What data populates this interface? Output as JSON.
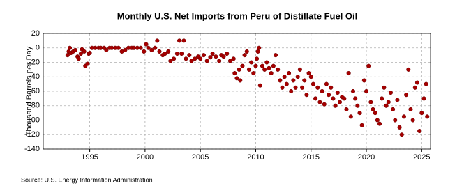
{
  "chart_data": {
    "type": "scatter",
    "title": "Monthly U.S. Net Imports from Peru of Distillate Fuel Oil",
    "y_label": "Thousand Barrels per Day",
    "source": "Source: U.S. Energy Information Administration",
    "color": "#a50000",
    "grid": true,
    "xlim": [
      1990.8,
      2025.8
    ],
    "xticks": [
      1995,
      2000,
      2005,
      2010,
      2015,
      2020,
      2025
    ],
    "ylim": [
      -140,
      20
    ],
    "yticks": [
      -140,
      -120,
      -100,
      -80,
      -60,
      -40,
      -20,
      0,
      20
    ],
    "x": [
      1993.0,
      1993.1,
      1993.2,
      1993.3,
      1993.5,
      1993.7,
      1993.9,
      1994.0,
      1994.2,
      1994.3,
      1994.5,
      1994.6,
      1994.8,
      1994.9,
      1995.0,
      1995.2,
      1995.5,
      1995.8,
      1996.0,
      1996.3,
      1996.5,
      1996.8,
      1997.0,
      1997.3,
      1997.6,
      1997.9,
      1998.2,
      1998.5,
      1998.8,
      1999.0,
      1999.3,
      1999.6,
      1999.9,
      2000.1,
      2000.3,
      2000.6,
      2000.9,
      2001.1,
      2001.3,
      2001.6,
      2001.8,
      2002.1,
      2002.3,
      2002.6,
      2002.9,
      2003.1,
      2003.3,
      2003.5,
      2003.7,
      2004.0,
      2004.2,
      2004.5,
      2004.8,
      2005.0,
      2005.3,
      2005.6,
      2005.9,
      2006.1,
      2006.4,
      2006.7,
      2006.9,
      2007.1,
      2007.4,
      2007.7,
      2008.0,
      2008.1,
      2008.3,
      2008.5,
      2008.6,
      2008.8,
      2009.0,
      2009.2,
      2009.4,
      2009.6,
      2009.8,
      2010.0,
      2010.1,
      2010.2,
      2010.3,
      2010.4,
      2010.6,
      2010.8,
      2011.0,
      2011.2,
      2011.4,
      2011.6,
      2011.8,
      2012.0,
      2012.2,
      2012.4,
      2012.6,
      2012.8,
      2013.0,
      2013.2,
      2013.4,
      2013.6,
      2013.8,
      2014.0,
      2014.2,
      2014.4,
      2014.6,
      2014.8,
      2015.0,
      2015.2,
      2015.4,
      2015.6,
      2015.8,
      2016.0,
      2016.2,
      2016.4,
      2016.6,
      2016.8,
      2017.0,
      2017.2,
      2017.4,
      2017.6,
      2017.8,
      2018.0,
      2018.2,
      2018.4,
      2018.6,
      2018.8,
      2019.0,
      2019.2,
      2019.4,
      2019.6,
      2019.8,
      2020.0,
      2020.2,
      2020.4,
      2020.6,
      2020.8,
      2021.0,
      2021.2,
      2021.4,
      2021.6,
      2021.8,
      2022.0,
      2022.2,
      2022.4,
      2022.6,
      2022.8,
      2023.0,
      2023.2,
      2023.4,
      2023.6,
      2023.8,
      2024.0,
      2024.2,
      2024.4,
      2024.6,
      2024.8,
      2025.0,
      2025.2,
      2025.4,
      2025.5
    ],
    "values": [
      -10,
      -5,
      0,
      -7,
      -5,
      -3,
      -12,
      -15,
      -8,
      -2,
      -5,
      -25,
      -22,
      -8,
      -7,
      0,
      0,
      0,
      0,
      0,
      -3,
      0,
      0,
      0,
      0,
      -5,
      -3,
      0,
      0,
      0,
      0,
      0,
      -5,
      5,
      0,
      -3,
      0,
      10,
      -5,
      -10,
      -8,
      -5,
      -18,
      -15,
      -8,
      10,
      -8,
      10,
      -15,
      -10,
      -18,
      -15,
      -12,
      -15,
      -10,
      -18,
      -13,
      -8,
      -12,
      -18,
      -10,
      -12,
      -8,
      -18,
      -15,
      -35,
      -42,
      -30,
      -45,
      -25,
      -10,
      -5,
      -30,
      -20,
      -35,
      -25,
      -15,
      -5,
      0,
      -52,
      -25,
      -30,
      -20,
      -28,
      -35,
      -25,
      -10,
      -30,
      -45,
      -55,
      -40,
      -50,
      -35,
      -60,
      -45,
      -55,
      -40,
      -30,
      -55,
      -45,
      -65,
      -35,
      -40,
      -50,
      -70,
      -55,
      -75,
      -60,
      -78,
      -50,
      -65,
      -55,
      -70,
      -80,
      -62,
      -75,
      -68,
      -70,
      -85,
      -35,
      -95,
      -60,
      -70,
      -80,
      -90,
      -107,
      -45,
      -60,
      -25,
      -75,
      -85,
      -90,
      -100,
      -105,
      -70,
      -55,
      -80,
      -75,
      -62,
      -85,
      -100,
      -72,
      -110,
      -120,
      -95,
      -65,
      -30,
      -85,
      -100,
      -55,
      -48,
      -115,
      -90,
      -70,
      -50,
      -95
    ]
  }
}
